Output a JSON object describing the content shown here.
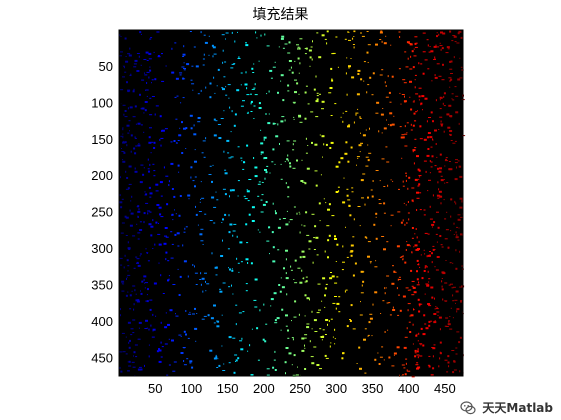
{
  "figure": {
    "title": "填充结果",
    "background_color": "#ffffff"
  },
  "axes": {
    "plot_background": "#000000",
    "y_ticks": [
      "50",
      "100",
      "150",
      "200",
      "250",
      "300",
      "350",
      "400",
      "450"
    ],
    "x_ticks": [
      "50",
      "100",
      "150",
      "200",
      "250",
      "300",
      "350",
      "400",
      "450"
    ]
  },
  "chart_data": {
    "type": "heatmap",
    "title": "填充结果",
    "xlabel": "",
    "ylabel": "",
    "xlim": [
      0,
      475
    ],
    "ylim": [
      475,
      0
    ],
    "colormap": "jet",
    "colormap_direction": "left-to-right",
    "colormap_endpoints": [
      "#00008f",
      "#7f0000"
    ],
    "x_tick_values": [
      50,
      100,
      150,
      200,
      250,
      300,
      350,
      400,
      450
    ],
    "y_tick_values": [
      50,
      100,
      150,
      200,
      250,
      300,
      350,
      400,
      450
    ],
    "grid": false
  },
  "watermark": {
    "text": "天天Matlab",
    "icon": "wechat-icon"
  }
}
